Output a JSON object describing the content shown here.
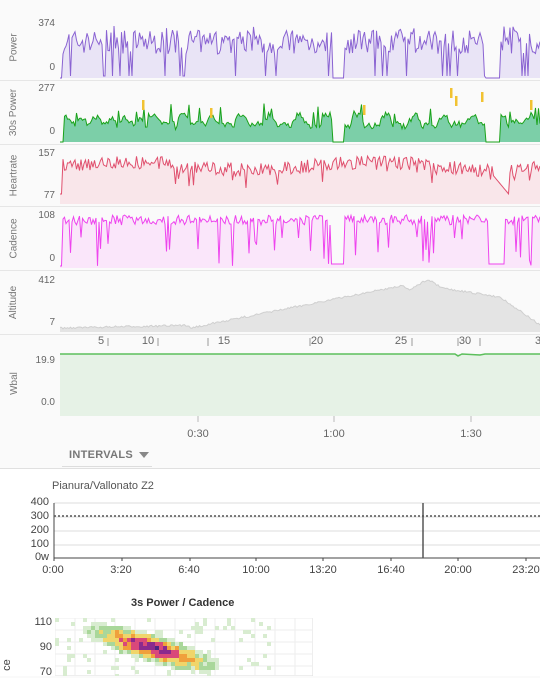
{
  "tracks": [
    {
      "name": "power",
      "label": "Power",
      "max": "374",
      "min": "0",
      "color": "#8a63d2",
      "fill": "#e9e4f6"
    },
    {
      "name": "30s-power",
      "label": "30s Power",
      "max": "277",
      "min": "0",
      "color": "#1aa21a",
      "fill": "#7ccfa8"
    },
    {
      "name": "heartrate",
      "label": "Heartrate",
      "max": "157",
      "min": "77",
      "color": "#e0506e",
      "fill": "#f9e6ea"
    },
    {
      "name": "cadence",
      "label": "Cadence",
      "max": "108",
      "min": "0",
      "color": "#ee44ee",
      "fill": "#fae6fa"
    },
    {
      "name": "altitude",
      "label": "Altitude",
      "max": "412",
      "min": "7",
      "color": "#cfcfcf",
      "fill": "#e4e4e4"
    }
  ],
  "distance_ticks": [
    "5",
    "10",
    "15",
    "20",
    "25",
    "30",
    "3"
  ],
  "wbal": {
    "label": "Wbal",
    "max": "19.9",
    "min": "0.0",
    "color": "#5cbf5c",
    "fill": "#e6f2e6"
  },
  "time_ticks": [
    "0:30",
    "1:00",
    "1:30"
  ],
  "intervals": {
    "label": "INTERVALS",
    "icon": "caret-down-icon"
  },
  "zone_chart": {
    "title": "Pianura/Vallonato Z2",
    "y_ticks": [
      "400",
      "300",
      "200",
      "100",
      "0w"
    ],
    "x_ticks": [
      "0:00",
      "3:20",
      "6:40",
      "10:00",
      "13:20",
      "16:40",
      "20:00",
      "23:20"
    ]
  },
  "scatter_chart": {
    "title": "3s Power / Cadence",
    "y_ticks": [
      "110",
      "90",
      "70"
    ],
    "y_axis_label": "ce"
  }
}
